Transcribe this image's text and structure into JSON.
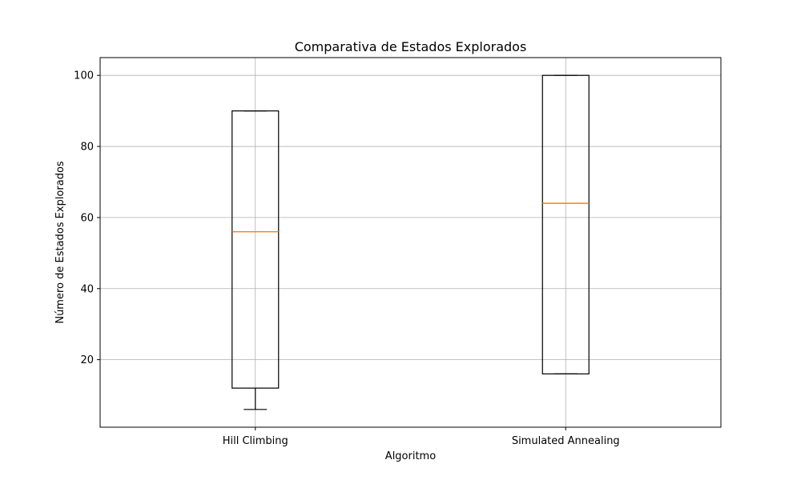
{
  "chart_data": {
    "type": "box",
    "title": "Comparativa de Estados Explorados",
    "xlabel": "Algoritmo",
    "ylabel": "Número de Estados Explorados",
    "ylim": [
      1,
      105
    ],
    "yticks": [
      20,
      40,
      60,
      80,
      100
    ],
    "grid": true,
    "categories": [
      "Hill Climbing",
      "Simulated Annealing"
    ],
    "boxes": [
      {
        "category": "Hill Climbing",
        "whisker_low": 6,
        "q1": 12,
        "median": 56,
        "q3": 90,
        "whisker_high": 90
      },
      {
        "category": "Simulated Annealing",
        "whisker_low": 16,
        "q1": 16,
        "median": 64,
        "q3": 100,
        "whisker_high": 100
      }
    ],
    "colors": {
      "box": "#000000",
      "median": "#ff7f0e",
      "grid": "#b0b0b0"
    }
  }
}
